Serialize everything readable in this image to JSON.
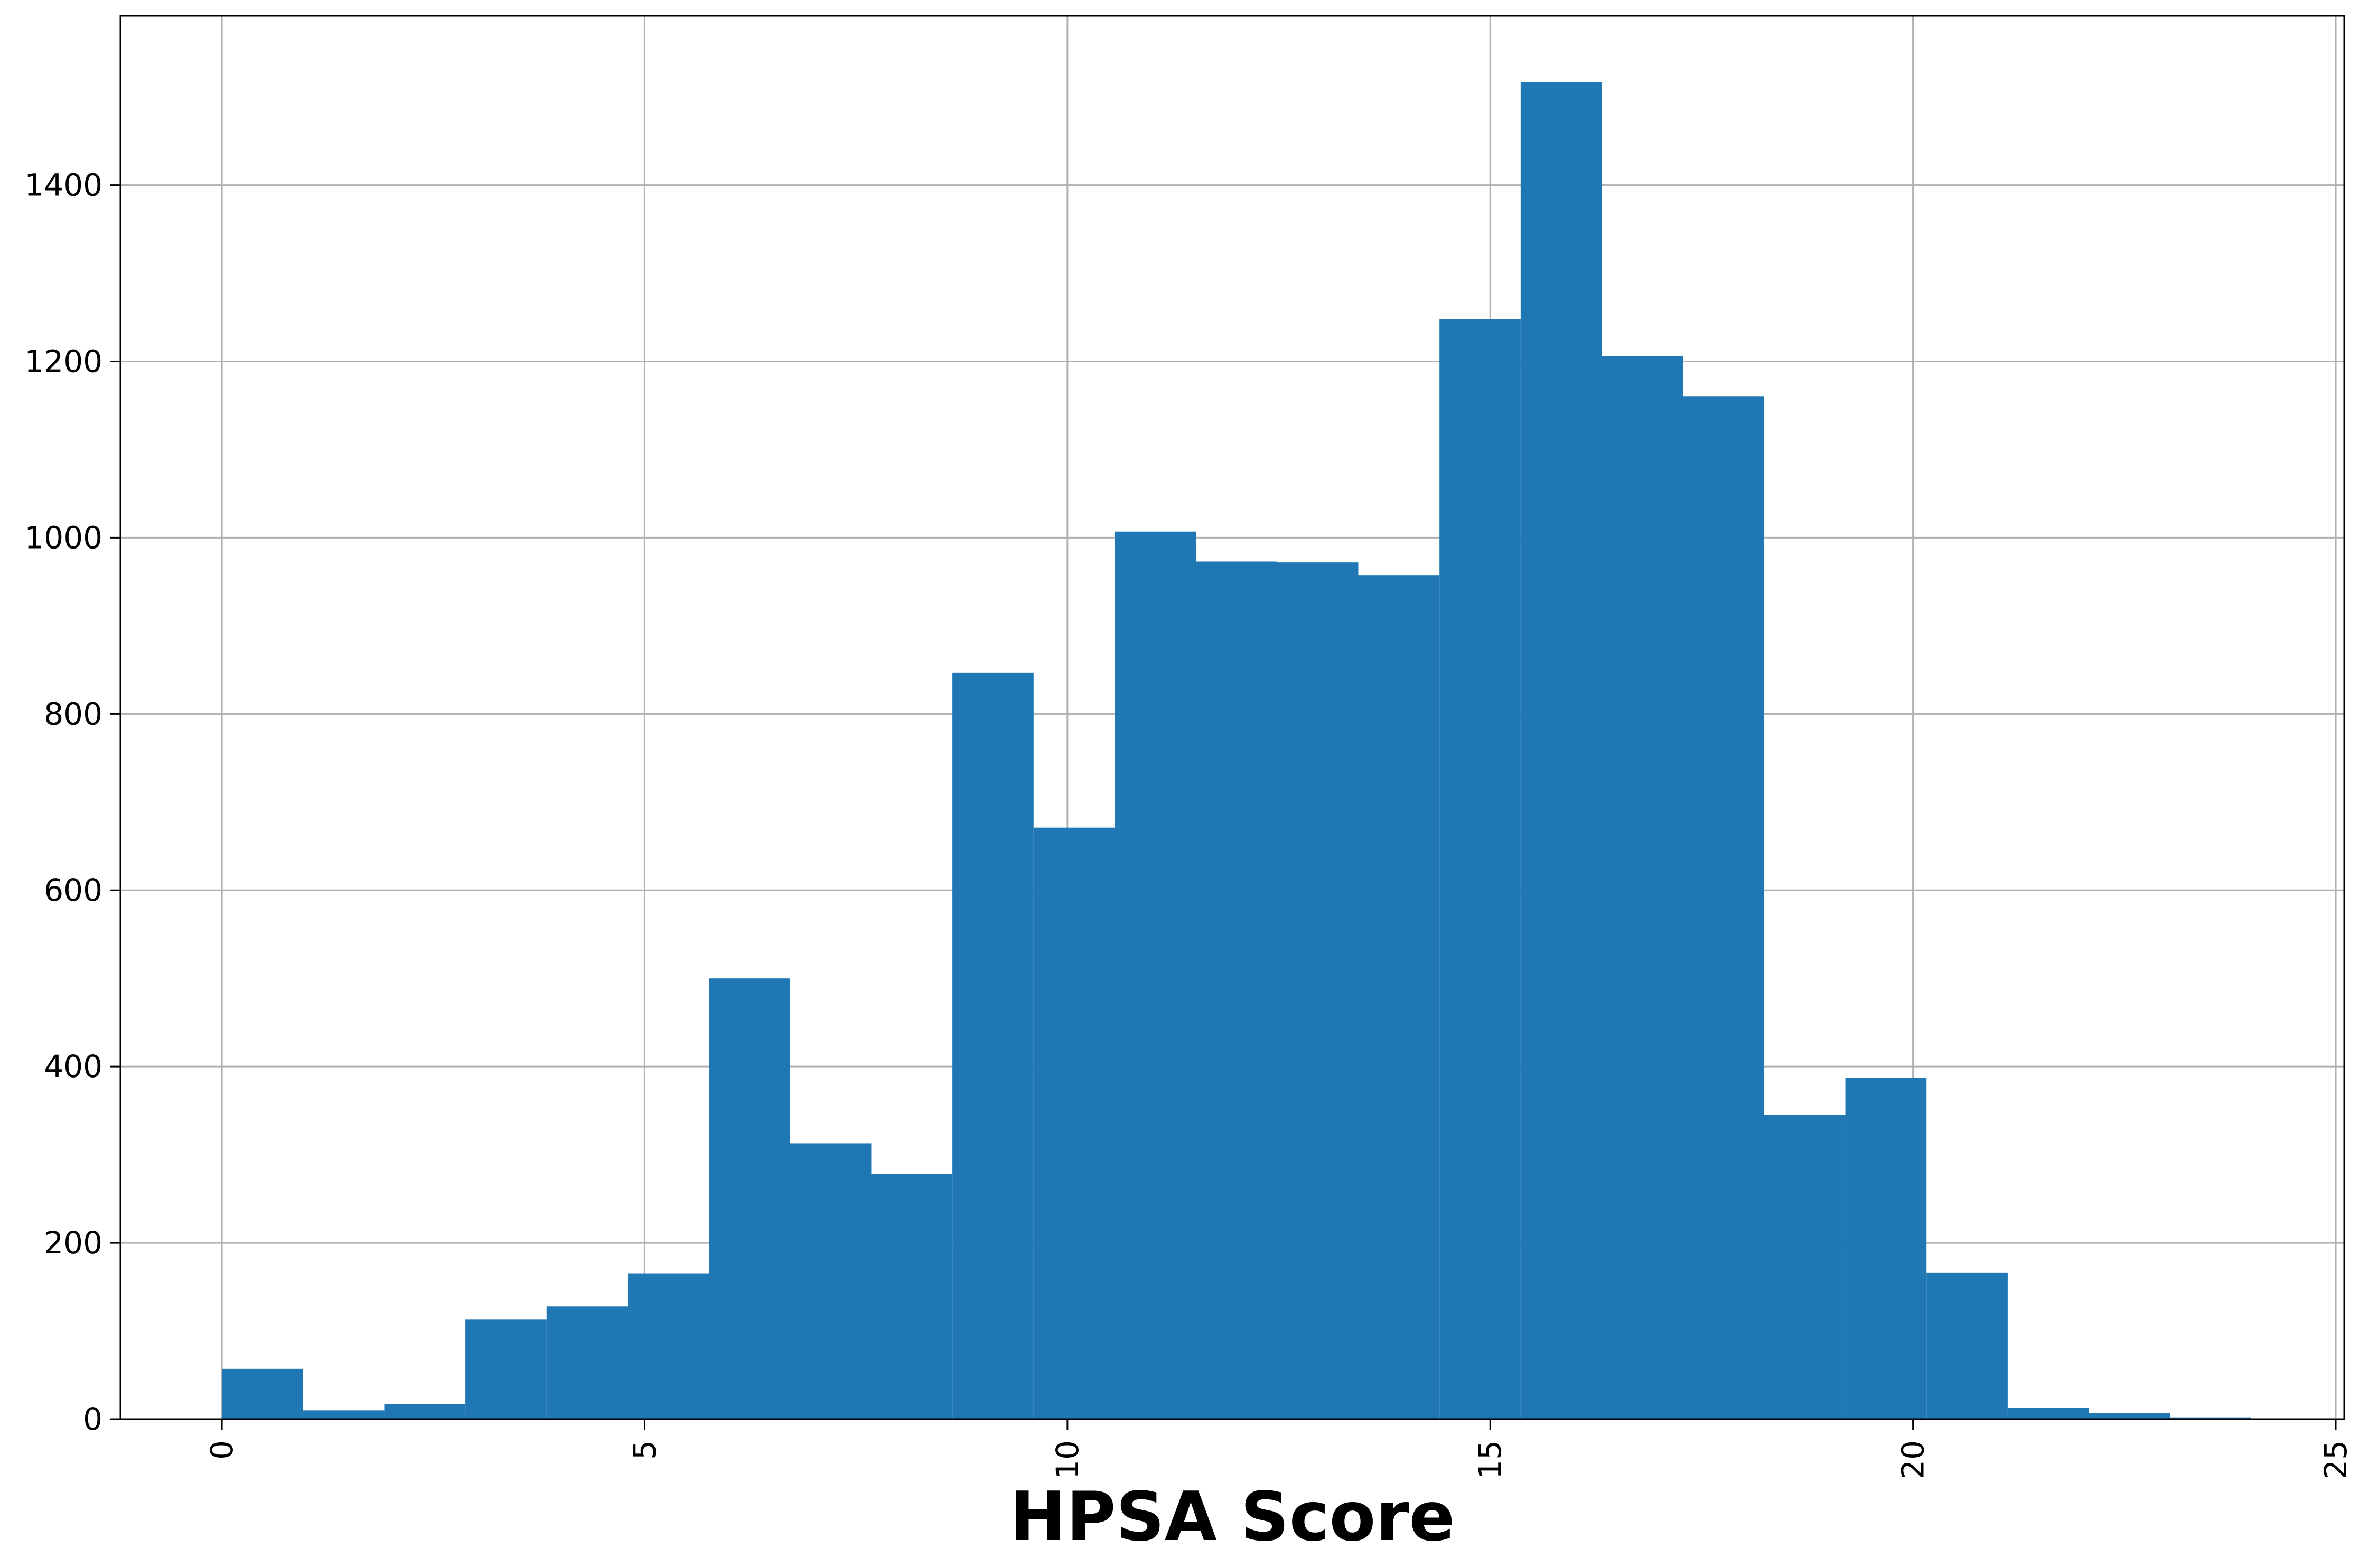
{
  "chart_data": {
    "type": "bar",
    "subtype": "histogram",
    "title": "",
    "xlabel": "HPSA Score",
    "ylabel": "",
    "xlim": [
      -1.2,
      25.1
    ],
    "ylim": [
      0,
      1592
    ],
    "grid": true,
    "x_ticks": [
      0,
      5,
      10,
      15,
      20,
      25
    ],
    "x_tick_rotation": 90,
    "y_ticks": [
      0,
      200,
      400,
      600,
      800,
      1000,
      1200,
      1400
    ],
    "bin_edges": [
      0,
      0.96,
      1.92,
      2.88,
      3.84,
      4.8,
      5.76,
      6.72,
      7.68,
      8.64,
      9.6,
      10.56,
      11.52,
      12.48,
      13.44,
      14.4,
      15.36,
      16.32,
      17.28,
      18.24,
      19.2,
      20.16,
      21.12,
      22.08,
      23.04,
      24.0
    ],
    "values": [
      57,
      10,
      17,
      113,
      128,
      165,
      500,
      313,
      278,
      847,
      671,
      1007,
      973,
      972,
      957,
      1248,
      1517,
      1206,
      1160,
      345,
      387,
      166,
      13,
      7,
      2
    ],
    "colors": {
      "bar": "#1f77b4",
      "grid": "#b0b0b0",
      "axes": "#000000"
    }
  }
}
